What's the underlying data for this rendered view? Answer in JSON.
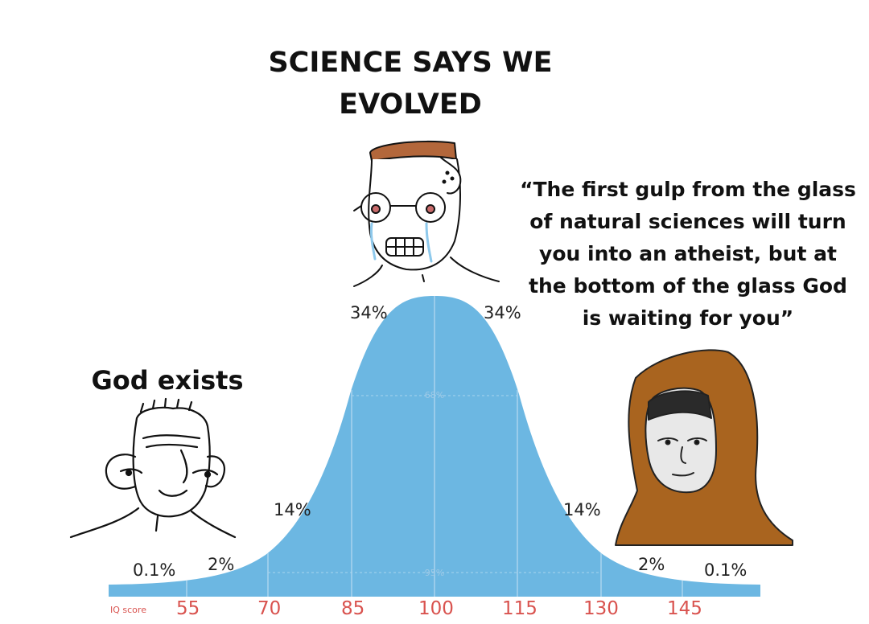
{
  "captions": {
    "top": "SCIENCE SAYS WE EVOLVED",
    "left": "God exists",
    "right": "“The first gulp from the glass of natural sciences will turn you into an atheist, but at the bottom of the glass God is waiting for you”"
  },
  "curve": {
    "axis_title": "IQ score",
    "ticks": [
      "55",
      "70",
      "85",
      "100",
      "115",
      "130",
      "145"
    ],
    "percent_labels": {
      "far_left": "0.1%",
      "left_tail": "2%",
      "left_mid": "14%",
      "left_center": "34%",
      "right_center": "34%",
      "right_mid": "14%",
      "right_tail": "2%",
      "far_right": "0.1%"
    },
    "inner_labels": {
      "one_sd": "68%",
      "two_sd": "95%"
    },
    "fill_color": "#6cb7e2"
  },
  "characters": {
    "left": "wojak-simple-face",
    "center": "crying-nerd-wojak",
    "right": "hooded-monk-wojak"
  }
}
